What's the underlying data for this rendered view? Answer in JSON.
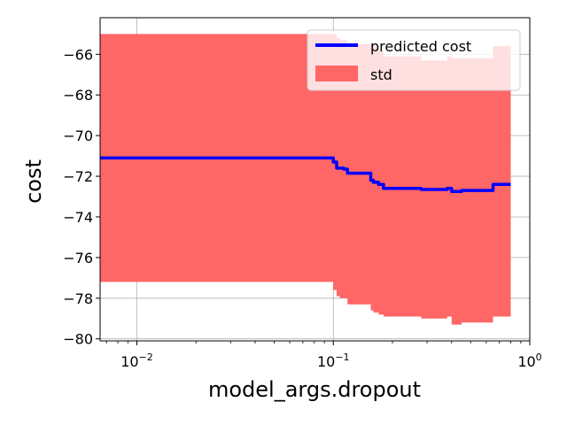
{
  "chart_data": {
    "type": "line",
    "xlabel": "model_args.dropout",
    "ylabel": "cost",
    "xscale": "log",
    "xlim": [
      0.0065,
      1.0
    ],
    "ylim": [
      -80.1,
      -64.2
    ],
    "grid": true,
    "legend_placement": "top-right",
    "x_ticks": [
      {
        "value": 0.01,
        "base": "10",
        "exp": "−2"
      },
      {
        "value": 0.1,
        "base": "10",
        "exp": "−1"
      },
      {
        "value": 1.0,
        "base": "10",
        "exp": "0"
      }
    ],
    "y_ticks": [
      {
        "value": -66,
        "label": "−66"
      },
      {
        "value": -68,
        "label": "−68"
      },
      {
        "value": -70,
        "label": "−70"
      },
      {
        "value": -72,
        "label": "−72"
      },
      {
        "value": -74,
        "label": "−74"
      },
      {
        "value": -76,
        "label": "−76"
      },
      {
        "value": -78,
        "label": "−78"
      },
      {
        "value": -80,
        "label": "−80"
      }
    ],
    "series": [
      {
        "name": "predicted cost",
        "kind": "line",
        "color": "#0000ff",
        "x": [
          0.0065,
          0.098,
          0.1,
          0.104,
          0.108,
          0.113,
          0.118,
          0.13,
          0.14,
          0.148,
          0.155,
          0.16,
          0.17,
          0.18,
          0.2,
          0.25,
          0.28,
          0.3,
          0.35,
          0.38,
          0.4,
          0.45,
          0.5,
          0.55,
          0.6,
          0.65,
          0.7,
          0.8
        ],
        "y": [
          -71.1,
          -71.1,
          -71.3,
          -71.6,
          -71.6,
          -71.65,
          -71.85,
          -71.85,
          -71.85,
          -71.85,
          -72.2,
          -72.3,
          -72.4,
          -72.6,
          -72.6,
          -72.6,
          -72.65,
          -72.65,
          -72.65,
          -72.6,
          -72.75,
          -72.7,
          -72.7,
          -72.7,
          -72.7,
          -72.4,
          -72.4,
          -72.4
        ]
      },
      {
        "name": "std",
        "kind": "band",
        "color": "#ff6666",
        "x": [
          0.0065,
          0.098,
          0.1,
          0.104,
          0.108,
          0.113,
          0.118,
          0.13,
          0.14,
          0.148,
          0.155,
          0.16,
          0.17,
          0.18,
          0.2,
          0.25,
          0.28,
          0.3,
          0.35,
          0.38,
          0.4,
          0.45,
          0.5,
          0.55,
          0.6,
          0.65,
          0.7,
          0.8
        ],
        "upper": [
          -65.0,
          -65.0,
          -65.0,
          -65.2,
          -65.3,
          -65.3,
          -65.5,
          -65.5,
          -65.5,
          -65.5,
          -65.5,
          -65.6,
          -65.8,
          -66.1,
          -66.1,
          -66.1,
          -66.3,
          -66.3,
          -66.3,
          -66.1,
          -66.2,
          -66.2,
          -66.2,
          -66.2,
          -66.2,
          -65.6,
          -65.6,
          -65.6
        ],
        "lower": [
          -77.2,
          -77.2,
          -77.6,
          -77.9,
          -78.0,
          -78.0,
          -78.3,
          -78.3,
          -78.3,
          -78.3,
          -78.6,
          -78.7,
          -78.8,
          -78.9,
          -78.9,
          -78.9,
          -79.0,
          -79.0,
          -79.0,
          -78.9,
          -79.3,
          -79.2,
          -79.2,
          -79.2,
          -79.2,
          -78.9,
          -78.9,
          -78.9
        ]
      }
    ]
  }
}
